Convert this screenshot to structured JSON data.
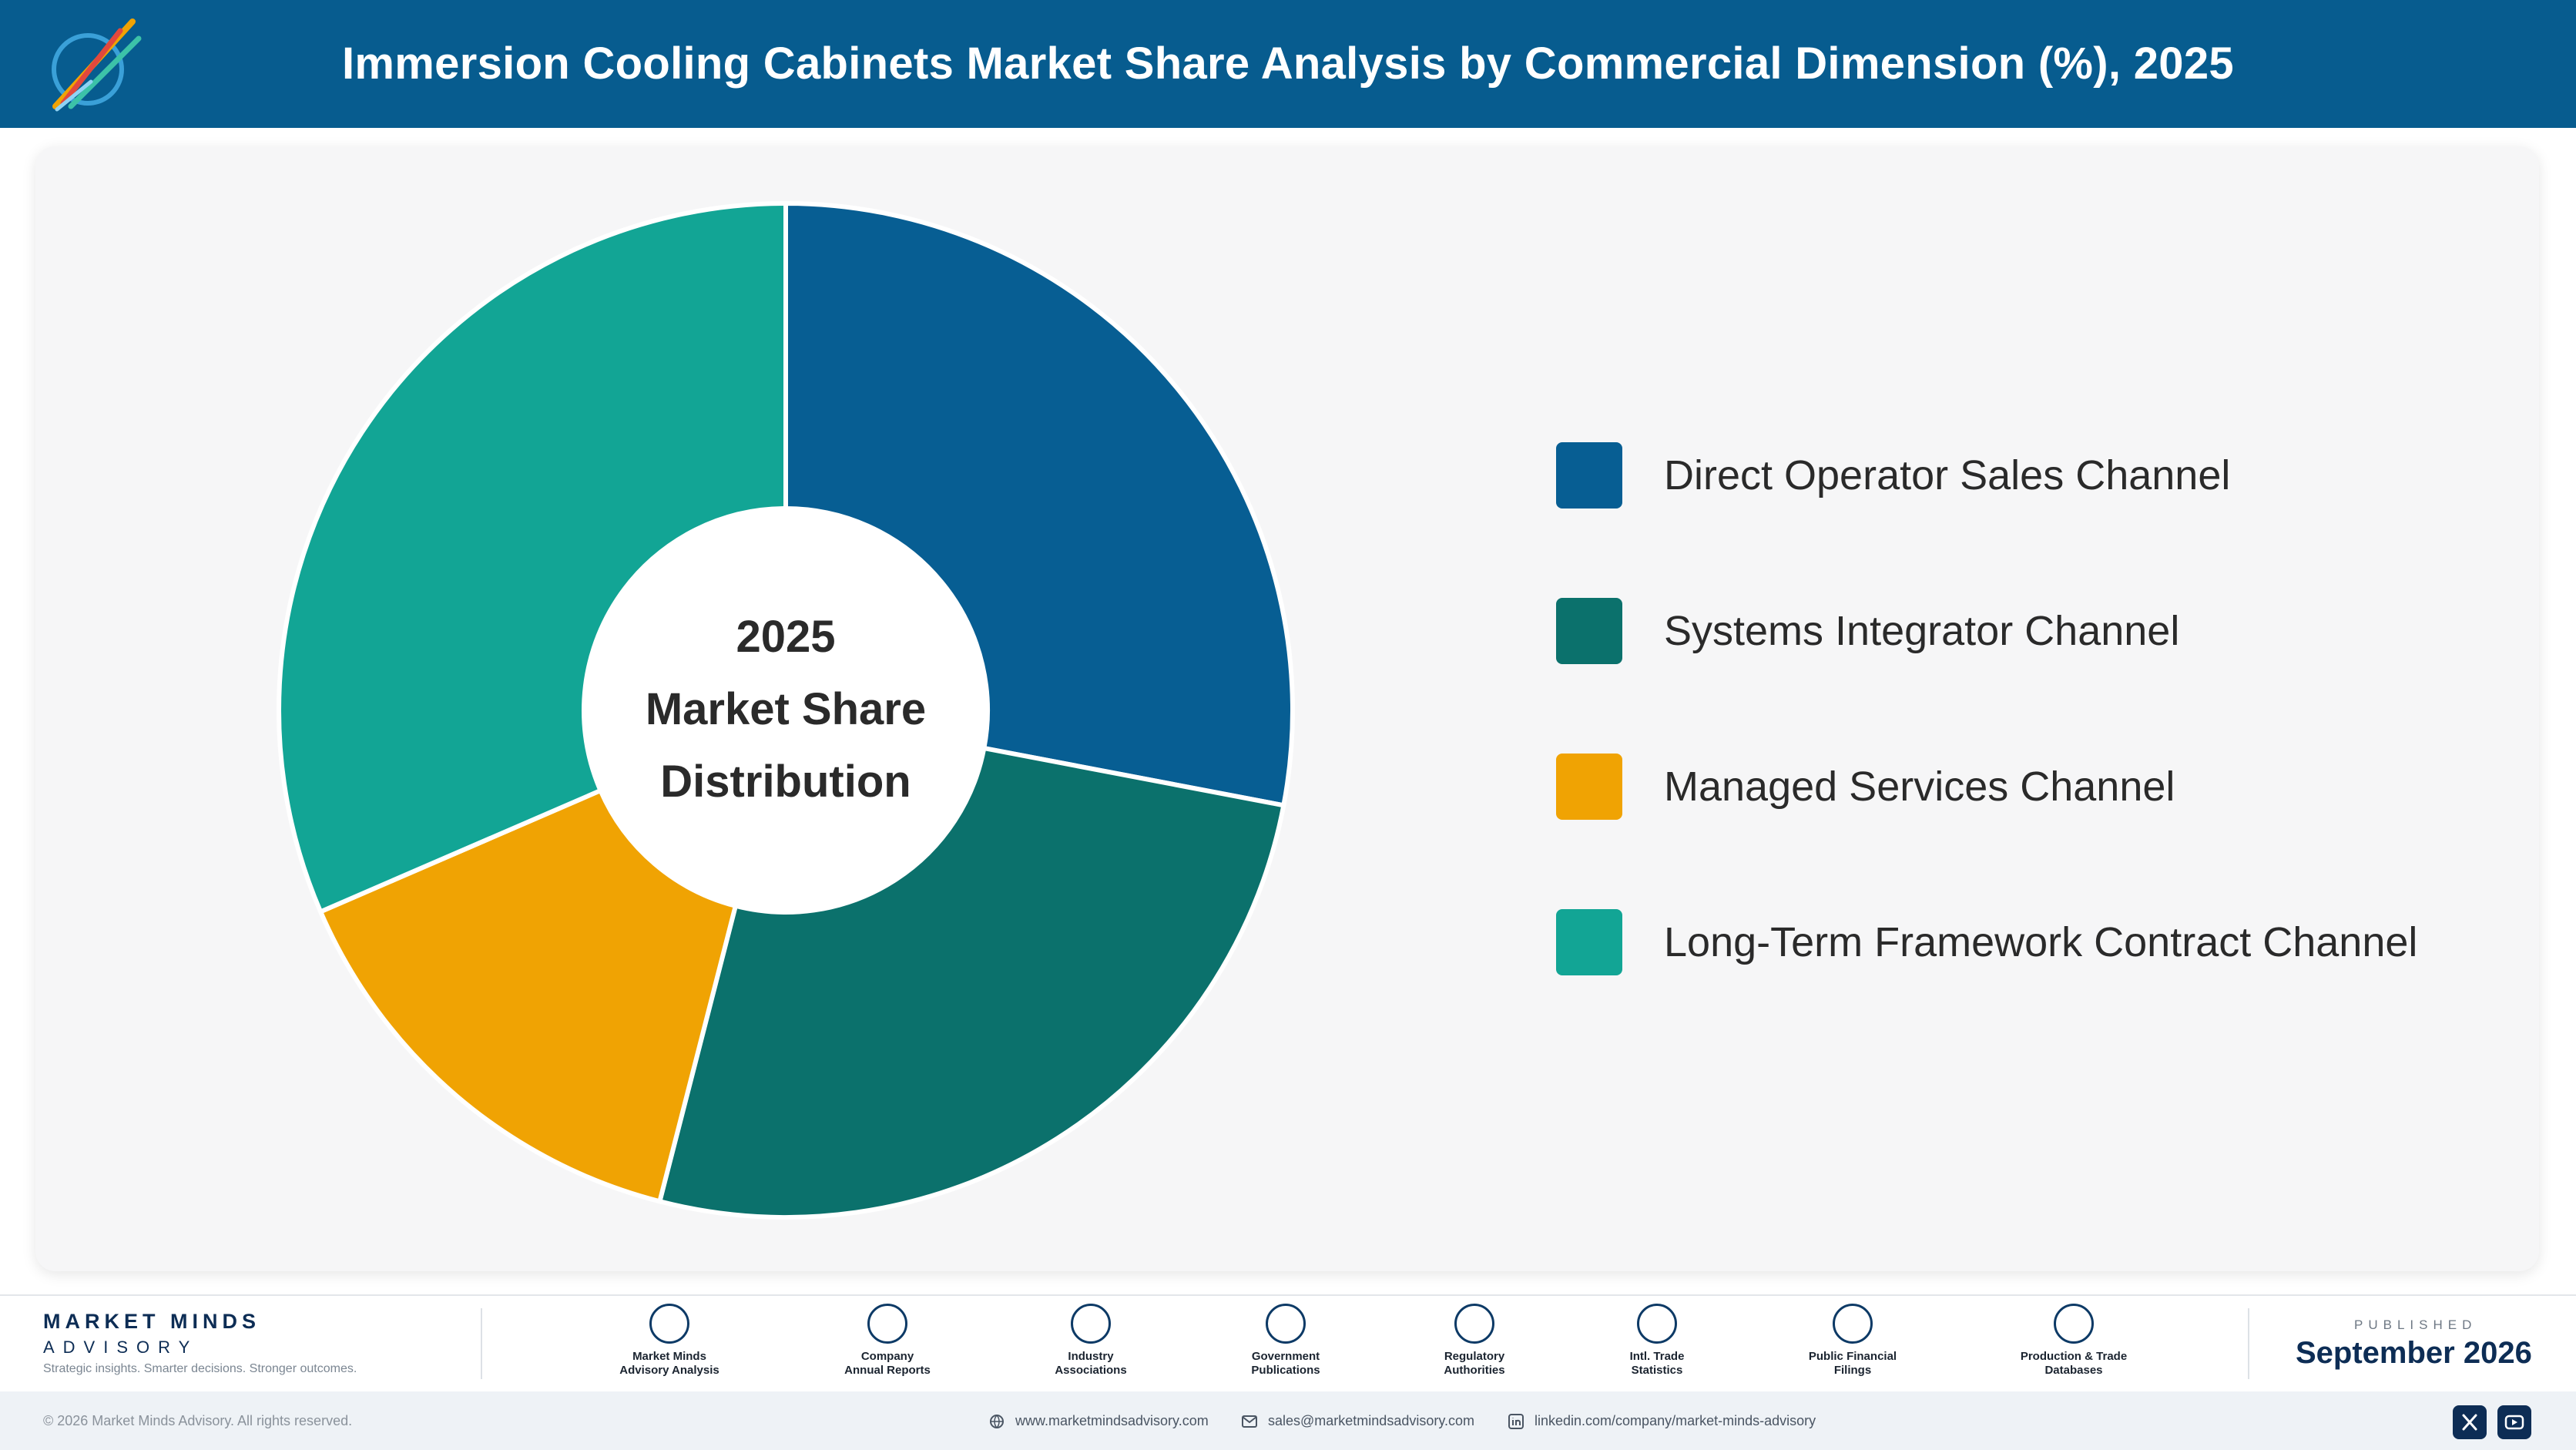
{
  "header": {
    "title": "Immersion Cooling Cabinets Market Share Analysis by Commercial Dimension (%), 2025"
  },
  "colors": {
    "header_bg": "#075c8f",
    "card_bg": "#f6f6f7",
    "brand_navy": "#0d2d55"
  },
  "chart_data": {
    "type": "pie",
    "donut": true,
    "center_label": [
      "2025",
      "Market Share",
      "Distribution"
    ],
    "legend_position": "right",
    "categories": [
      "Direct Operator Sales Channel",
      "Systems Integrator Channel",
      "Managed Services Channel",
      "Long-Term Framework Contract Channel"
    ],
    "values": [
      28.0,
      26.0,
      14.5,
      31.5
    ],
    "colors": [
      "#075e93",
      "#0b716c",
      "#f0a303",
      "#12a595"
    ]
  },
  "footer": {
    "brand_name": "MARKET MINDS",
    "brand_sub": "ADVISORY",
    "brand_tagline": "Strategic insights. Smarter decisions. Stronger outcomes.",
    "sources": [
      {
        "label": "Market Minds\nAdvisory Analysis",
        "icon": "trend-line-icon"
      },
      {
        "label": "Company\nAnnual Reports",
        "icon": "document-icon"
      },
      {
        "label": "Industry\nAssociations",
        "icon": "network-icon"
      },
      {
        "label": "Government\nPublications",
        "icon": "government-building-icon"
      },
      {
        "label": "Regulatory\nAuthorities",
        "icon": "shield-check-icon"
      },
      {
        "label": "Intl. Trade\nStatistics",
        "icon": "globe-icon"
      },
      {
        "label": "Public Financial\nFilings",
        "icon": "coin-icon"
      },
      {
        "label": "Production & Trade\nDatabases",
        "icon": "database-icon"
      }
    ],
    "published_label": "PUBLISHED",
    "published_date": "September 2026",
    "copyright": "© 2026 Market Minds Advisory. All rights reserved.",
    "website": "www.marketmindsadvisory.com",
    "email": "sales@marketmindsadvisory.com",
    "linkedin": "linkedin.com/company/market-minds-advisory",
    "social": [
      "x-icon",
      "youtube-icon"
    ]
  }
}
